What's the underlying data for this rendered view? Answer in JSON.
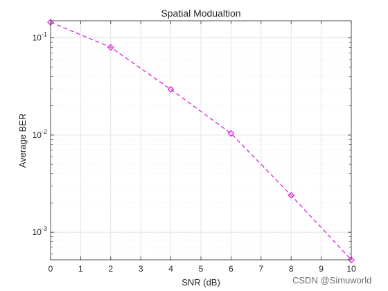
{
  "chart_data": {
    "type": "line",
    "title": "Spatial Modualtion",
    "xlabel": "SNR (dB)",
    "ylabel": "Average BER",
    "xlim": [
      0,
      10
    ],
    "ylim": [
      0.00052,
      0.15
    ],
    "yscale": "log",
    "grid": true,
    "minor_grid": true,
    "x_ticks": [
      0,
      1,
      2,
      3,
      4,
      5,
      6,
      7,
      8,
      9,
      10
    ],
    "y_ticks": [
      {
        "value": 0.001,
        "base": "10",
        "exp": "-3"
      },
      {
        "value": 0.01,
        "base": "10",
        "exp": "-2"
      },
      {
        "value": 0.1,
        "base": "10",
        "exp": "-1"
      }
    ],
    "series": [
      {
        "color": "#e020e0",
        "line_style": "dashed",
        "marker": "diamond",
        "x": [
          0,
          2,
          4,
          6,
          8,
          10
        ],
        "y": [
          0.145,
          0.08,
          0.0295,
          0.0104,
          0.0024,
          0.00052
        ]
      }
    ]
  },
  "watermark": "CSDN @Simuworld",
  "colors": {
    "axis": "#262626",
    "grid_major": "#dfdfdf",
    "grid_minor": "#efefef",
    "series": "#e020e0"
  }
}
